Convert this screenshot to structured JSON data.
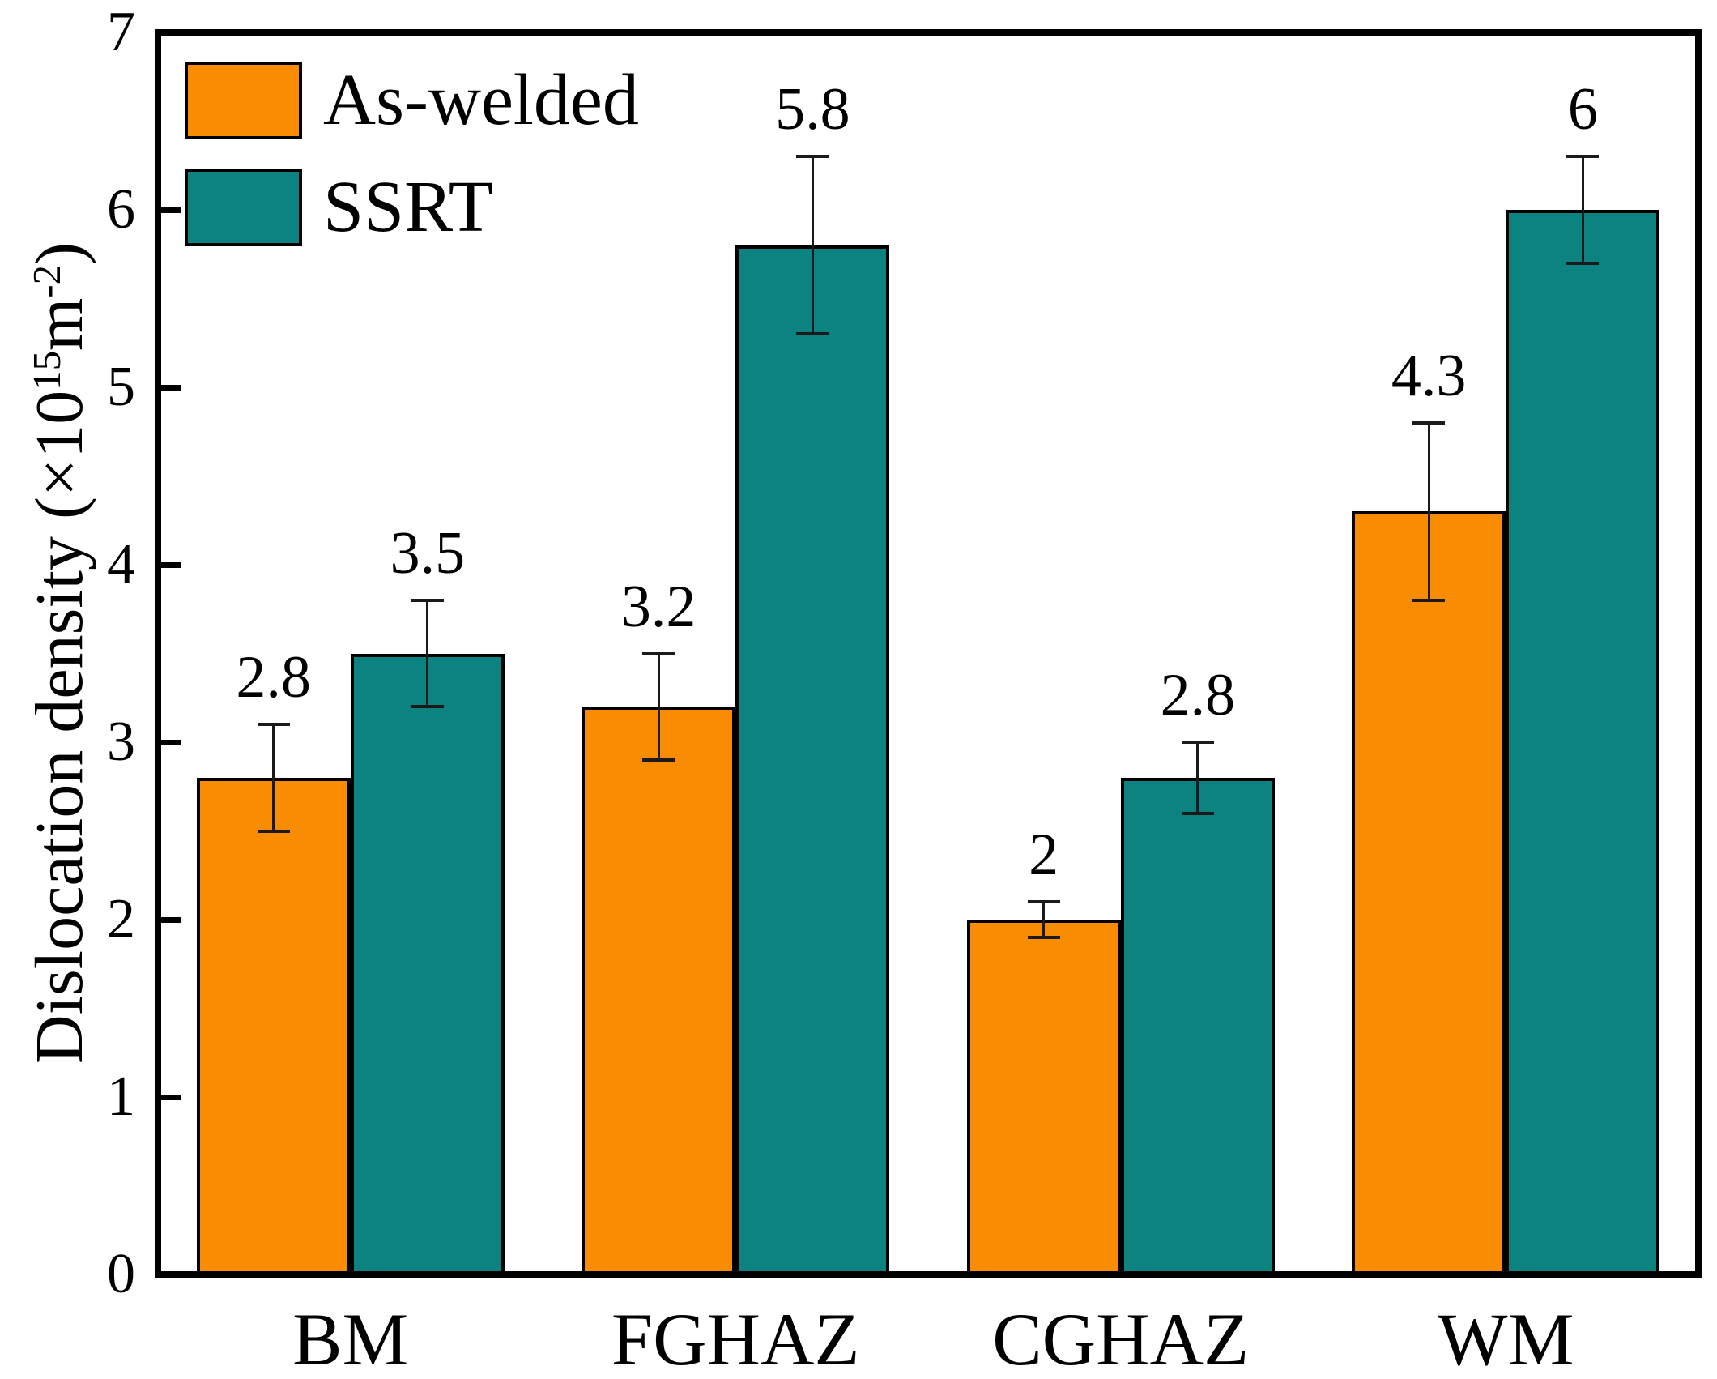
{
  "chart_data": {
    "type": "bar",
    "title": "",
    "ylabel": "Dislocation density (×10¹⁵m⁻²)",
    "ylabel_parts": {
      "prefix": "Dislocation density (×10",
      "exp1": "15",
      "unit": "m",
      "exp2": "-2",
      "suffix": ")"
    },
    "categories": [
      "BM",
      "FGHAZ",
      "CGHAZ",
      "WM"
    ],
    "series": [
      {
        "name": "As-welded",
        "color": "#FA8C04",
        "values": [
          2.8,
          3.2,
          2,
          4.3
        ],
        "errors": [
          0.3,
          0.3,
          0.1,
          0.5
        ],
        "labels": [
          "2.8",
          "3.2",
          "2",
          "4.3"
        ]
      },
      {
        "name": "SSRT",
        "color": "#0D8381",
        "values": [
          3.5,
          5.8,
          2.8,
          6
        ],
        "errors": [
          0.3,
          0.5,
          0.2,
          0.3
        ],
        "labels": [
          "3.5",
          "5.8",
          "2.8",
          "6"
        ]
      }
    ],
    "ylim": [
      0,
      7
    ],
    "yticks": [
      0,
      1,
      2,
      3,
      4,
      5,
      6,
      7
    ],
    "xlabel": "",
    "grid": false,
    "legend_position": "top-left",
    "bar_width_fraction": 0.4,
    "axis_color": "#000000",
    "error_bar_color": "#1a1a1a"
  }
}
